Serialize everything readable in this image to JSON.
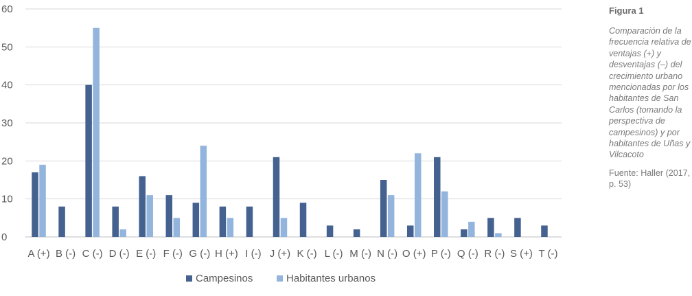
{
  "figure": {
    "label": "Figura 1",
    "caption": "Comparación de la frecuencia relativa de ventajas (+) y desventajas (–) del crecimiento urbano mencionadas por los habitantes de San Carlos (tomando la perspectiva de campesinos) y por habitantes de Uñas y Vilcacoto",
    "source": "Fuente: Haller (2017, p. 53)"
  },
  "chart_data": {
    "type": "bar",
    "categories": [
      "A (+)",
      "B (-)",
      "C (-)",
      "D (-)",
      "E (-)",
      "F (-)",
      "G (-)",
      "H (+)",
      "I (-)",
      "J (+)",
      "K (-)",
      "L (-)",
      "M (-)",
      "N (-)",
      "O (+)",
      "P (-)",
      "Q (-)",
      "R (-)",
      "S (+)",
      "T (-)"
    ],
    "series": [
      {
        "name": "Campesinos",
        "color": "#44618f",
        "values": [
          17,
          8,
          40,
          8,
          16,
          11,
          9,
          8,
          8,
          21,
          9,
          3,
          2,
          15,
          3,
          21,
          2,
          5,
          5,
          3
        ]
      },
      {
        "name": "Habitantes urbanos",
        "color": "#93b5dd",
        "values": [
          19,
          0,
          55,
          2,
          11,
          5,
          24,
          5,
          0,
          5,
          0,
          0,
          0,
          11,
          22,
          12,
          4,
          1,
          0,
          0
        ]
      }
    ],
    "ylim": [
      0,
      60
    ],
    "yticks": [
      "0",
      "10",
      "20",
      "30",
      "40",
      "50",
      "60"
    ],
    "grid": true,
    "legend": "bottom",
    "xlabel": "",
    "ylabel": "",
    "title": ""
  }
}
